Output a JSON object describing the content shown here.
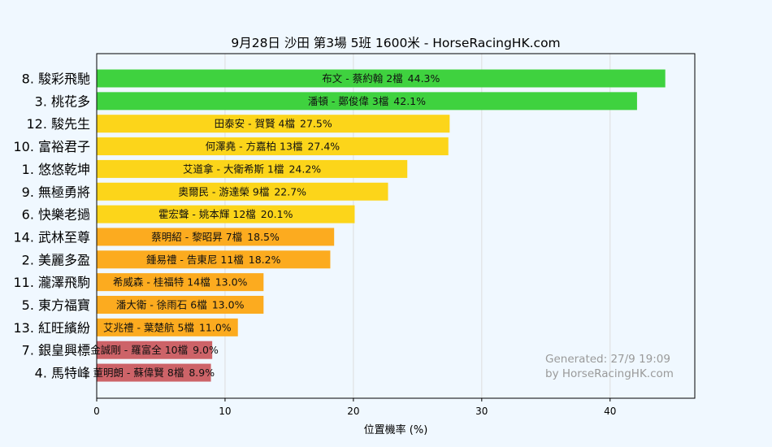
{
  "chart_data": {
    "type": "bar",
    "orientation": "horizontal",
    "title": "9月28日  沙田  第3場  5班  1600米 - HorseRacingHK.com",
    "xlabel": "位置機率 (%)",
    "ylabel": "",
    "xlim": [
      0,
      46.6
    ],
    "xticks": [
      0,
      10,
      20,
      30,
      40
    ],
    "grid": "vertical",
    "categories": [
      "8. 駿彩飛馳",
      "3. 桃花多",
      "12. 駿先生",
      "10. 富裕君子",
      "1. 悠悠乾坤",
      "9. 無極勇將",
      "6. 快樂老撾",
      "14. 武林至尊",
      "2. 美麗多盈",
      "11. 瀧澤飛駒",
      "5. 東方福寶",
      "13. 紅旺繽紛",
      "7. 銀皇興標",
      "4. 馬特峰"
    ],
    "values": [
      44.3,
      42.1,
      27.5,
      27.4,
      24.2,
      22.7,
      20.1,
      18.5,
      18.2,
      13.0,
      13.0,
      11.0,
      9.0,
      8.9
    ],
    "value_labels": [
      "44.3%",
      "42.1%",
      "27.5%",
      "27.4%",
      "24.2%",
      "22.7%",
      "20.1%",
      "18.5%",
      "18.2%",
      "13.0%",
      "13.0%",
      "11.0%",
      "9.0%",
      "8.9%"
    ],
    "bar_labels": [
      "布文 - 蔡約翰 2檔",
      "潘頓 - 鄭俊偉 3檔",
      "田泰安 - 賀賢 4檔",
      "何澤堯 - 方嘉柏 13檔",
      "艾道拿 - 大衛希斯 1檔",
      "奧爾民 - 游達榮 9檔",
      "霍宏聲 - 姚本輝 12檔",
      "蔡明紹 - 黎昭昇 7檔",
      "鍾易禮 - 告東尼 11檔",
      "希威森 - 桂福特 14檔",
      "潘大衛 - 徐雨石 6檔",
      "艾兆禮 - 葉楚航 5檔",
      "金誠剛 - 羅富全 10檔",
      "董明朗 - 蘇偉賢 8檔"
    ],
    "bar_colors": [
      "#3fd23f",
      "#3fd23f",
      "#fcd51a",
      "#fcd51a",
      "#fcd51a",
      "#fcd51a",
      "#fcd51a",
      "#fcab1f",
      "#fcab1f",
      "#fcab1f",
      "#fcab1f",
      "#fcab1f",
      "#cd6368",
      "#cd6368"
    ],
    "watermark": [
      "Generated: 27/9 19:09",
      "by HorseRacingHK.com"
    ]
  },
  "colors": {
    "background": "#f0f8ff",
    "grid": "#dddddd",
    "axis": "#000000"
  }
}
